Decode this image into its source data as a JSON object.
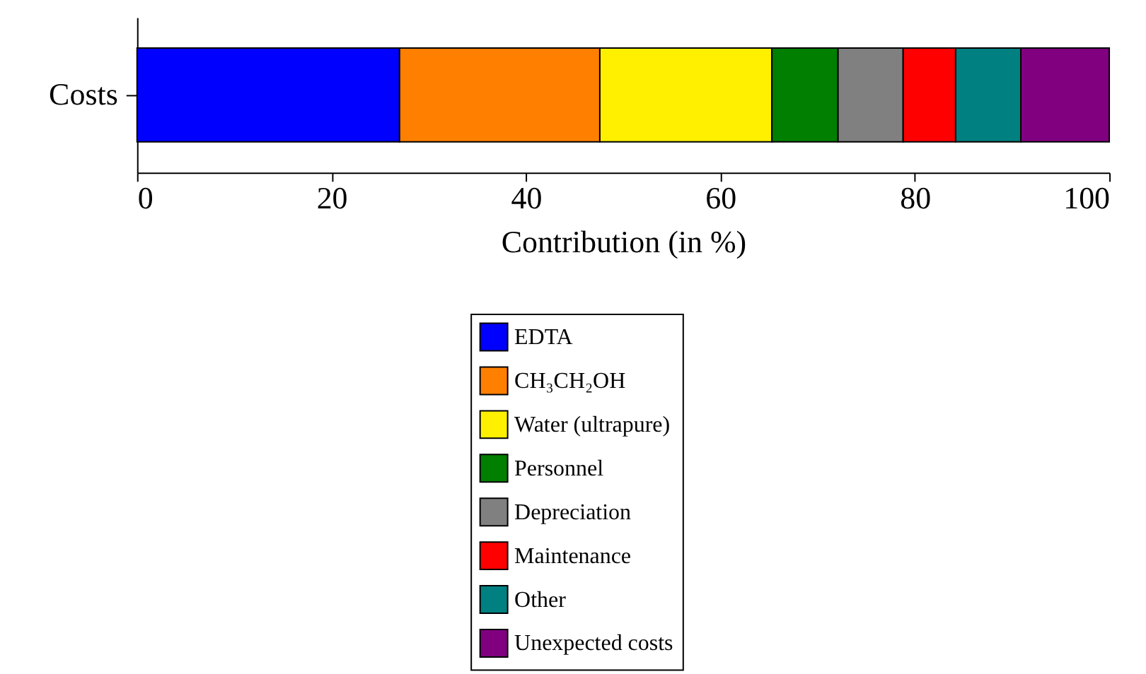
{
  "chart_data": {
    "type": "bar",
    "orientation": "horizontal",
    "stacked": true,
    "categories": [
      "Costs"
    ],
    "xlabel": "Contribution (in %)",
    "xlim": [
      0,
      100
    ],
    "xticks": [
      0,
      20,
      40,
      60,
      80,
      100
    ],
    "grid": false,
    "legend": "bottom",
    "series": [
      {
        "name": "EDTA",
        "color": "#0000ff",
        "values": [
          27.0
        ]
      },
      {
        "name": "CH₃CH₂OH",
        "color": "#ff8000",
        "values": [
          20.6
        ]
      },
      {
        "name": "Water (ultrapure)",
        "color": "#fff000",
        "values": [
          17.7
        ]
      },
      {
        "name": "Personnel",
        "color": "#007f00",
        "values": [
          6.8
        ]
      },
      {
        "name": "Depreciation",
        "color": "#808080",
        "values": [
          6.7
        ]
      },
      {
        "name": "Maintenance",
        "color": "#ff0000",
        "values": [
          5.4
        ]
      },
      {
        "name": "Other",
        "color": "#008080",
        "values": [
          6.7
        ]
      },
      {
        "name": "Unexpected costs",
        "color": "#800080",
        "values": [
          9.1
        ]
      }
    ]
  }
}
